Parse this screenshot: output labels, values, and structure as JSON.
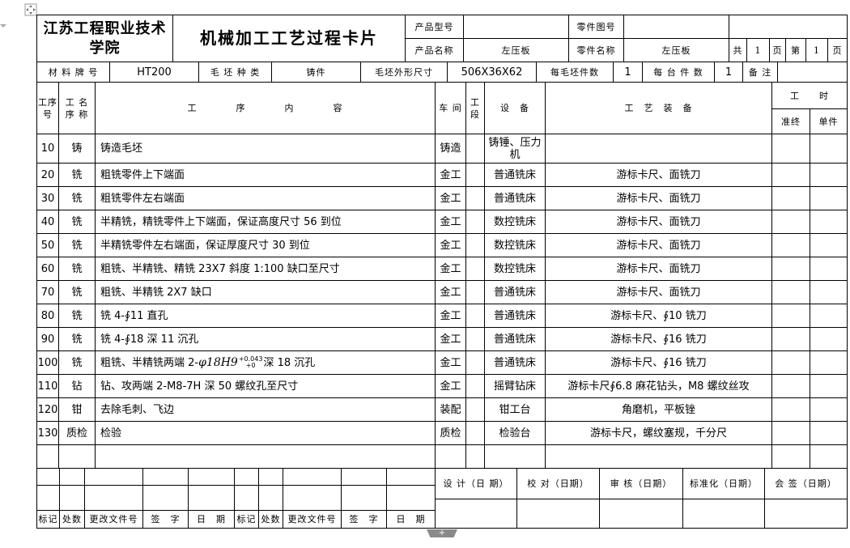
{
  "header": {
    "school": "江苏工程职业技术学院",
    "title": "机械加工工艺过程卡片",
    "product_model_label": "产品型号",
    "product_model_value": "",
    "part_drawing_label": "零件图号",
    "part_drawing_value": "",
    "product_name_label": "产品名称",
    "product_name_value": "左压板",
    "part_name_label": "零件名称",
    "part_name_value": "左压板",
    "total_label": "共",
    "total_pages": "1",
    "page_unit_1": "页",
    "current_label": "第",
    "current_page": "1",
    "page_unit_2": "页"
  },
  "material": {
    "grade_label": "材 料 牌 号",
    "grade_value": "HT200",
    "blank_type_label": "毛 坯 种 类",
    "blank_type_value": "铸件",
    "blank_size_label": "毛坯外形尺寸",
    "blank_size_value": "506X36X62",
    "per_blank_label": "每毛坯件数",
    "per_blank_value": "1",
    "per_unit_label": "每 台 件 数",
    "per_unit_value": "1",
    "remark_label": "备 注",
    "remark_value": ""
  },
  "columns": {
    "op_no": "工序号",
    "op_name": "工 名 序 称",
    "content": "工　　　　序　　　　内　　　　容",
    "workshop": "车 间",
    "section": "工 段",
    "equipment": "设　备",
    "tooling": "工　艺　装　备",
    "hours": "工　　时",
    "prep": "准终",
    "unit": "单件"
  },
  "rows": [
    {
      "no": "10",
      "name": "铸",
      "content": "铸造毛坯",
      "workshop": "铸造",
      "section": "",
      "equipment": "铸锤、压力机",
      "tooling": "",
      "prep": "",
      "unit": ""
    },
    {
      "no": "20",
      "name": "铣",
      "content": "粗铣零件上下端面",
      "workshop": "金工",
      "section": "",
      "equipment": "普通铣床",
      "tooling": "游标卡尺、面铣刀",
      "prep": "",
      "unit": ""
    },
    {
      "no": "30",
      "name": "铣",
      "content": "粗铣零件左右端面",
      "workshop": "金工",
      "section": "",
      "equipment": "普通铣床",
      "tooling": "游标卡尺、面铣刀",
      "prep": "",
      "unit": ""
    },
    {
      "no": "40",
      "name": "铣",
      "content": "半精铣，精铣零件上下端面，保证高度尺寸 56 到位",
      "workshop": "金工",
      "section": "",
      "equipment": "数控铣床",
      "tooling": "游标卡尺、面铣刀",
      "prep": "",
      "unit": ""
    },
    {
      "no": "50",
      "name": "铣",
      "content": "半精铣零件左右端面，保证厚度尺寸 30 到位",
      "workshop": "金工",
      "section": "",
      "equipment": "数控铣床",
      "tooling": "游标卡尺、面铣刀",
      "prep": "",
      "unit": ""
    },
    {
      "no": "60",
      "name": "铣",
      "content": "粗铣、半精铣、精铣 23X7 斜度 1:100 缺口至尺寸",
      "workshop": "金工",
      "section": "",
      "equipment": "数控铣床",
      "tooling": "游标卡尺、面铣刀",
      "prep": "",
      "unit": ""
    },
    {
      "no": "70",
      "name": "铣",
      "content": "粗铣、半精铣 2X7 缺口",
      "workshop": "金工",
      "section": "",
      "equipment": "普通铣床",
      "tooling": "游标卡尺、面铣刀",
      "prep": "",
      "unit": ""
    },
    {
      "no": "80",
      "name": "铣",
      "content": "铣 4-∮11 直孔",
      "workshop": "金工",
      "section": "",
      "equipment": "普通铣床",
      "tooling": "游标卡尺、∮10 铣刀",
      "prep": "",
      "unit": ""
    },
    {
      "no": "90",
      "name": "铣",
      "content": "铣 4-∮18 深 11 沉孔",
      "workshop": "金工",
      "section": "",
      "equipment": "普通铣床",
      "tooling": "游标卡尺、∮16 铣刀",
      "prep": "",
      "unit": ""
    },
    {
      "no": "100",
      "name": "铣",
      "content_prefix": "粗铣、半精铣两端 2-",
      "content_math": "φ18H9",
      "content_upper": "+0.043",
      "content_lower": "+0",
      "content_suffix": "深 18 沉孔",
      "workshop": "金工",
      "section": "",
      "equipment": "普通铣床",
      "tooling": "游标卡尺、∮16 铣刀",
      "prep": "",
      "unit": ""
    },
    {
      "no": "110",
      "name": "钻",
      "content": "钻、攻两端 2-M8-7H 深 50 螺纹孔至尺寸",
      "workshop": "金工",
      "section": "",
      "equipment": "摇臂钻床",
      "tooling": "游标卡尺∮6.8 麻花钻头，M8 螺纹丝攻",
      "prep": "",
      "unit": ""
    },
    {
      "no": "120",
      "name": "钳",
      "content": "去除毛刺、飞边",
      "workshop": "装配",
      "section": "",
      "equipment": "钳工台",
      "tooling": "角磨机，平板锉",
      "prep": "",
      "unit": ""
    },
    {
      "no": "130",
      "name": "质检",
      "content": "检验",
      "workshop": "质检",
      "section": "",
      "equipment": "检验台",
      "tooling": "游标卡尺，螺纹塞规，千分尺",
      "prep": "",
      "unit": ""
    },
    {
      "no": "",
      "name": "",
      "content": "",
      "workshop": "",
      "section": "",
      "equipment": "",
      "tooling": "",
      "prep": "",
      "unit": ""
    }
  ],
  "footer": {
    "change_labels": [
      "标记",
      "处数",
      "更改文件号",
      "签　字",
      "日　期",
      "标记",
      "处数",
      "更改文件号",
      "签　字",
      "日　期"
    ],
    "sign_labels": [
      "设 计（日 期）",
      "校 对（日期）",
      "审 核（日期）",
      "标准化（日期）",
      "会 签（日期）"
    ]
  },
  "icons": {
    "move": "move-handle-icon",
    "add": "add-row-icon"
  }
}
